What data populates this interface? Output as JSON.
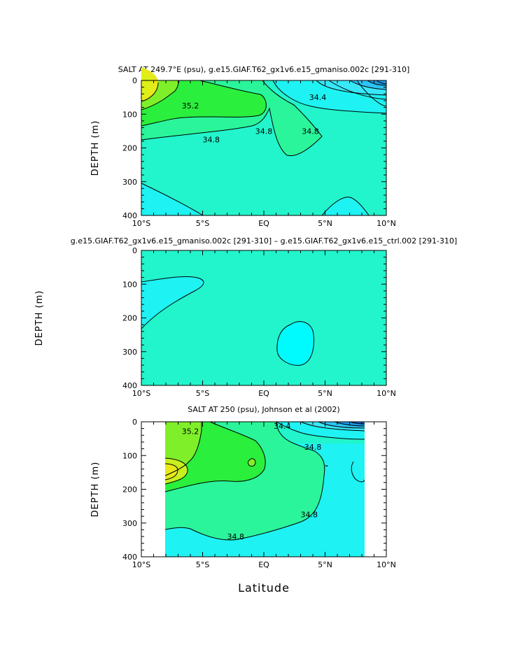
{
  "figure": {
    "xlabel_bottom": "Latitude"
  },
  "chart_data": [
    {
      "type": "contour",
      "title": "SALT AT 249.7°E (psu), g.e15.GIAF.T62_gx1v6.e15_gmaniso.002c [291-310]",
      "ylabel": "DEPTH (m)",
      "xlim": [
        -10,
        10
      ],
      "ylim": [
        400,
        0
      ],
      "x_ticks": [
        -10,
        -5,
        0,
        5,
        10
      ],
      "x_tick_labels": [
        "10°S",
        "5°S",
        "EQ",
        "5°N",
        "10°N"
      ],
      "y_ticks": [
        0,
        100,
        200,
        300,
        400
      ],
      "y_tick_labels": [
        "0",
        "100",
        "200",
        "300",
        "400"
      ],
      "data_extent": [
        -10,
        10
      ],
      "contour_labels": [
        {
          "text": "35.2",
          "x": -6.0,
          "y": 75
        },
        {
          "text": "34.8",
          "x": -4.3,
          "y": 175
        },
        {
          "text": "34.8",
          "x": 0.0,
          "y": 150
        },
        {
          "text": "34.8",
          "x": 3.8,
          "y": 150
        },
        {
          "text": "34.4",
          "x": 4.4,
          "y": 50
        }
      ]
    },
    {
      "type": "contour",
      "title": "g.e15.GIAF.T62_gx1v6.e15_gmaniso.002c [291-310] – g.e15.GIAF.T62_gx1v6.e15_ctrl.002 [291-310]",
      "ylabel": "DEPTH (m)",
      "xlim": [
        -10,
        10
      ],
      "ylim": [
        400,
        0
      ],
      "x_ticks": [
        -10,
        -5,
        0,
        5,
        10
      ],
      "x_tick_labels": [
        "10°S",
        "5°S",
        "EQ",
        "5°N",
        "10°N"
      ],
      "y_ticks": [
        0,
        100,
        200,
        300,
        400
      ],
      "y_tick_labels": [
        "0",
        "100",
        "200",
        "300",
        "400"
      ],
      "data_extent": [
        -10,
        10
      ],
      "contour_labels": []
    },
    {
      "type": "contour",
      "title": "SALT AT 250 (psu), Johnson et al (2002)",
      "ylabel": "DEPTH (m)",
      "xlabel": "Latitude",
      "xlim": [
        -10,
        10
      ],
      "ylim": [
        400,
        0
      ],
      "x_ticks": [
        -10,
        -5,
        0,
        5,
        10
      ],
      "x_tick_labels": [
        "10°S",
        "5°S",
        "EQ",
        "5°N",
        "10°N"
      ],
      "y_ticks": [
        0,
        100,
        200,
        300,
        400
      ],
      "y_tick_labels": [
        "0",
        "100",
        "200",
        "300",
        "400"
      ],
      "data_extent": [
        -8.1,
        8.1
      ],
      "contour_labels": [
        {
          "text": "35.2",
          "x": -6.0,
          "y": 28
        },
        {
          "text": "34.4",
          "x": 1.5,
          "y": 12
        },
        {
          "text": "34.8",
          "x": 4.0,
          "y": 75
        },
        {
          "text": "34.8",
          "x": 3.7,
          "y": 275
        },
        {
          "text": "34.8",
          "x": -2.3,
          "y": 340
        }
      ]
    }
  ]
}
